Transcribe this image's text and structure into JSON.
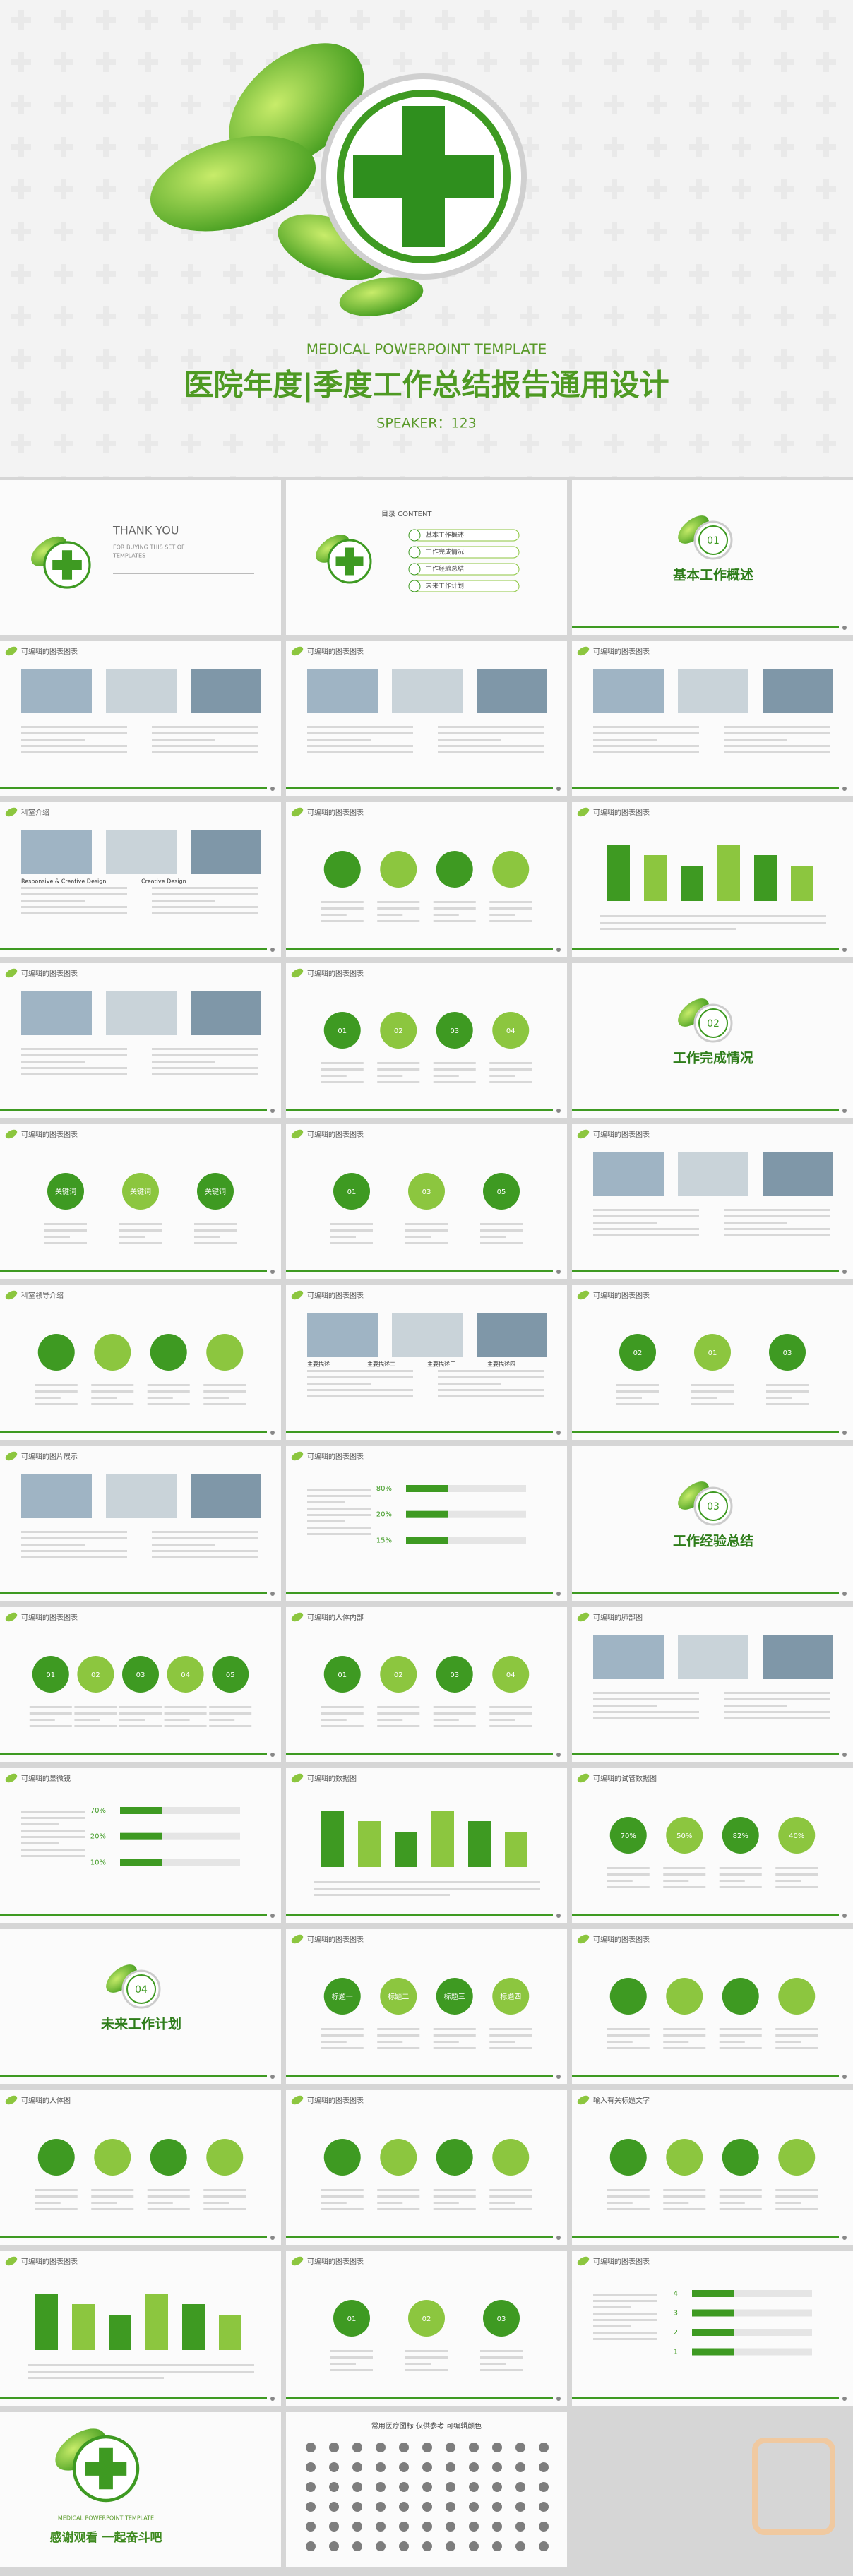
{
  "hero": {
    "subtitle": "MEDICAL POWERPOINT TEMPLATE",
    "title": "医院年度|季度工作总结报告通用设计",
    "speaker": "SPEAKER：123"
  },
  "slides": [
    {
      "kind": "intro",
      "title": "THANK YOU",
      "labels": [
        "FOR BUYING THIS SET OF",
        "TEMPLATES"
      ]
    },
    {
      "kind": "toc",
      "title": "目录 CONTENT",
      "labels": [
        "基本工作概述",
        "工作完成情况",
        "工作经验总结",
        "未来工作计划"
      ]
    },
    {
      "kind": "section",
      "number": "01",
      "title": "基本工作概述"
    },
    {
      "kind": "photos",
      "header": "可编辑的图表图表"
    },
    {
      "kind": "photos",
      "header": "可编辑的图表图表"
    },
    {
      "kind": "photos",
      "header": "可编辑的图表图表"
    },
    {
      "kind": "photos",
      "header": "科室介绍",
      "labels": [
        "Responsive & Creative Design",
        "Creative Design"
      ]
    },
    {
      "kind": "circles",
      "header": "可编辑的图表图表"
    },
    {
      "kind": "bars",
      "header": "可编辑的图表图表"
    },
    {
      "kind": "photos",
      "header": "可编辑的图表图表"
    },
    {
      "kind": "circles",
      "header": "可编辑的图表图表",
      "labels": [
        "01",
        "02",
        "03",
        "04"
      ]
    },
    {
      "kind": "section",
      "number": "02",
      "title": "工作完成情况"
    },
    {
      "kind": "circles",
      "header": "可编辑的图表图表",
      "labels": [
        "关键词",
        "关键词",
        "关键词"
      ]
    },
    {
      "kind": "circles",
      "header": "可编辑的图表图表",
      "labels": [
        "01",
        "03",
        "05"
      ]
    },
    {
      "kind": "photos",
      "header": "可编辑的图表图表"
    },
    {
      "kind": "circles",
      "header": "科室领导介绍"
    },
    {
      "kind": "photos",
      "header": "可编辑的图表图表",
      "labels": [
        "主要描述一",
        "主要描述二",
        "主要描述三",
        "主要描述四"
      ]
    },
    {
      "kind": "circles",
      "header": "可编辑的图表图表",
      "labels": [
        "02",
        "01",
        "03"
      ]
    },
    {
      "kind": "photos",
      "header": "可编辑的图片展示"
    },
    {
      "kind": "rows",
      "header": "可编辑的图表图表",
      "labels": [
        "80%",
        "20%",
        "15%"
      ]
    },
    {
      "kind": "section",
      "number": "03",
      "title": "工作经验总结"
    },
    {
      "kind": "circles",
      "header": "可编辑的图表图表",
      "labels": [
        "01",
        "02",
        "03",
        "04",
        "05"
      ]
    },
    {
      "kind": "circles",
      "header": "可编辑的人体内部",
      "labels": [
        "01",
        "02",
        "03",
        "04"
      ]
    },
    {
      "kind": "photos",
      "header": "可编辑的肺部图"
    },
    {
      "kind": "rows",
      "header": "可编辑的显微镜",
      "labels": [
        "70%",
        "20%",
        "10%"
      ]
    },
    {
      "kind": "bars",
      "header": "可编辑的数据图"
    },
    {
      "kind": "circles",
      "header": "可编辑的试管数据图",
      "labels": [
        "70%",
        "50%",
        "82%",
        "40%"
      ]
    },
    {
      "kind": "section",
      "number": "04",
      "title": "未来工作计划"
    },
    {
      "kind": "circles",
      "header": "可编辑的图表图表",
      "labels": [
        "标题一",
        "标题二",
        "标题三",
        "标题四"
      ]
    },
    {
      "kind": "circles",
      "header": "可编辑的图表图表"
    },
    {
      "kind": "circles",
      "header": "可编辑的人体图"
    },
    {
      "kind": "circles",
      "header": "可编辑的图表图表"
    },
    {
      "kind": "circles",
      "header": "输入有关标题文字"
    },
    {
      "kind": "bars",
      "header": "可编辑的图表图表"
    },
    {
      "kind": "circles",
      "header": "可编辑的图表图表",
      "labels": [
        "01",
        "02",
        "03"
      ]
    },
    {
      "kind": "rows",
      "header": "可编辑的图表图表",
      "labels": [
        "4",
        "3",
        "2",
        "1"
      ]
    },
    {
      "kind": "end",
      "title": "感谢观看 一起奋斗吧",
      "labels": [
        "MEDICAL POWERPOINT TEMPLATE"
      ]
    },
    {
      "kind": "icons",
      "title": "常用医疗图标 仅供参考 可编辑颜色"
    },
    {
      "kind": "blank"
    }
  ]
}
